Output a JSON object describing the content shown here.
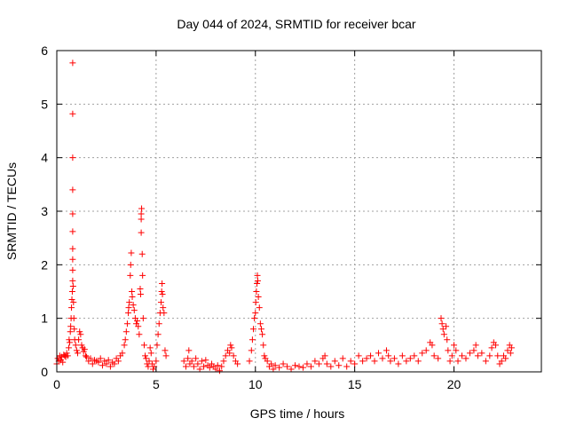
{
  "chart_data": {
    "type": "scatter",
    "title": "Day 044 of 2024, SRMTID for receiver bcar",
    "xlabel": "GPS time / hours",
    "ylabel": "SRMTID / TECUs",
    "xlim": [
      0,
      24.4
    ],
    "ylim": [
      0,
      6
    ],
    "xticks": [
      0,
      5,
      10,
      15,
      20
    ],
    "yticks": [
      0,
      1,
      2,
      3,
      4,
      5,
      6
    ],
    "grid": true,
    "marker": "+",
    "color": "#ff0000",
    "series": [
      {
        "name": "SRMTID",
        "points": [
          [
            0.0,
            0.15
          ],
          [
            0.05,
            0.25
          ],
          [
            0.1,
            0.2
          ],
          [
            0.15,
            0.3
          ],
          [
            0.2,
            0.22
          ],
          [
            0.25,
            0.28
          ],
          [
            0.3,
            0.18
          ],
          [
            0.35,
            0.32
          ],
          [
            0.4,
            0.3
          ],
          [
            0.45,
            0.28
          ],
          [
            0.5,
            0.35
          ],
          [
            0.55,
            0.3
          ],
          [
            0.6,
            0.45
          ],
          [
            0.62,
            0.6
          ],
          [
            0.65,
            0.55
          ],
          [
            0.68,
            0.75
          ],
          [
            0.7,
            0.85
          ],
          [
            0.72,
            1.0
          ],
          [
            0.74,
            1.2
          ],
          [
            0.76,
            1.35
          ],
          [
            0.78,
            1.5
          ],
          [
            0.8,
            1.7
          ],
          [
            0.8,
            1.9
          ],
          [
            0.8,
            2.1
          ],
          [
            0.8,
            2.3
          ],
          [
            0.8,
            2.62
          ],
          [
            0.8,
            2.95
          ],
          [
            0.8,
            3.4
          ],
          [
            0.8,
            4.0
          ],
          [
            0.8,
            4.82
          ],
          [
            0.8,
            5.77
          ],
          [
            0.82,
            1.6
          ],
          [
            0.84,
            1.3
          ],
          [
            0.86,
            1.0
          ],
          [
            0.88,
            0.8
          ],
          [
            0.9,
            0.6
          ],
          [
            0.95,
            0.5
          ],
          [
            1.0,
            0.4
          ],
          [
            1.05,
            0.35
          ],
          [
            1.1,
            0.6
          ],
          [
            1.15,
            0.75
          ],
          [
            1.2,
            0.7
          ],
          [
            1.25,
            0.5
          ],
          [
            1.3,
            0.45
          ],
          [
            1.35,
            0.38
          ],
          [
            1.4,
            0.42
          ],
          [
            1.45,
            0.3
          ],
          [
            1.5,
            0.28
          ],
          [
            1.6,
            0.2
          ],
          [
            1.7,
            0.25
          ],
          [
            1.8,
            0.15
          ],
          [
            1.9,
            0.22
          ],
          [
            2.0,
            0.2
          ],
          [
            2.1,
            0.18
          ],
          [
            2.2,
            0.25
          ],
          [
            2.3,
            0.12
          ],
          [
            2.4,
            0.2
          ],
          [
            2.5,
            0.15
          ],
          [
            2.6,
            0.22
          ],
          [
            2.7,
            0.1
          ],
          [
            2.8,
            0.18
          ],
          [
            2.9,
            0.15
          ],
          [
            3.0,
            0.25
          ],
          [
            3.1,
            0.2
          ],
          [
            3.2,
            0.3
          ],
          [
            3.3,
            0.35
          ],
          [
            3.4,
            0.5
          ],
          [
            3.45,
            0.6
          ],
          [
            3.5,
            0.75
          ],
          [
            3.55,
            0.9
          ],
          [
            3.6,
            1.1
          ],
          [
            3.62,
            1.2
          ],
          [
            3.65,
            1.3
          ],
          [
            3.7,
            1.8
          ],
          [
            3.72,
            2.0
          ],
          [
            3.75,
            2.22
          ],
          [
            3.78,
            1.5
          ],
          [
            3.8,
            1.4
          ],
          [
            3.85,
            1.25
          ],
          [
            3.9,
            1.15
          ],
          [
            3.95,
            1.0
          ],
          [
            4.0,
            0.9
          ],
          [
            4.05,
            0.95
          ],
          [
            4.1,
            0.85
          ],
          [
            4.15,
            0.7
          ],
          [
            4.2,
            1.55
          ],
          [
            4.22,
            1.45
          ],
          [
            4.25,
            2.6
          ],
          [
            4.25,
            2.85
          ],
          [
            4.25,
            2.95
          ],
          [
            4.27,
            3.05
          ],
          [
            4.3,
            2.2
          ],
          [
            4.32,
            1.8
          ],
          [
            4.35,
            1.0
          ],
          [
            4.4,
            0.5
          ],
          [
            4.45,
            0.3
          ],
          [
            4.5,
            0.25
          ],
          [
            4.55,
            0.15
          ],
          [
            4.6,
            0.1
          ],
          [
            4.65,
            0.2
          ],
          [
            4.7,
            0.45
          ],
          [
            4.75,
            0.35
          ],
          [
            4.8,
            0.15
          ],
          [
            4.85,
            0.05
          ],
          [
            4.9,
            0.1
          ],
          [
            5.0,
            0.2
          ],
          [
            5.05,
            0.5
          ],
          [
            5.1,
            0.7
          ],
          [
            5.15,
            0.9
          ],
          [
            5.2,
            1.1
          ],
          [
            5.25,
            1.3
          ],
          [
            5.28,
            1.5
          ],
          [
            5.3,
            1.65
          ],
          [
            5.32,
            1.45
          ],
          [
            5.35,
            1.2
          ],
          [
            5.4,
            1.1
          ],
          [
            5.45,
            0.4
          ],
          [
            5.5,
            0.3
          ],
          [
            6.4,
            0.2
          ],
          [
            6.5,
            0.1
          ],
          [
            6.6,
            0.25
          ],
          [
            6.65,
            0.4
          ],
          [
            6.7,
            0.15
          ],
          [
            6.8,
            0.2
          ],
          [
            6.9,
            0.1
          ],
          [
            7.0,
            0.25
          ],
          [
            7.1,
            0.15
          ],
          [
            7.2,
            0.05
          ],
          [
            7.3,
            0.2
          ],
          [
            7.4,
            0.1
          ],
          [
            7.5,
            0.22
          ],
          [
            7.6,
            0.12
          ],
          [
            7.7,
            0.08
          ],
          [
            7.8,
            0.15
          ],
          [
            7.9,
            0.1
          ],
          [
            8.0,
            0.05
          ],
          [
            8.1,
            0.12
          ],
          [
            8.2,
            0.02
          ],
          [
            8.3,
            0.1
          ],
          [
            8.4,
            0.2
          ],
          [
            8.5,
            0.3
          ],
          [
            8.6,
            0.4
          ],
          [
            8.7,
            0.35
          ],
          [
            8.75,
            0.5
          ],
          [
            8.8,
            0.45
          ],
          [
            8.9,
            0.3
          ],
          [
            9.0,
            0.2
          ],
          [
            9.1,
            0.15
          ],
          [
            9.7,
            0.2
          ],
          [
            9.8,
            0.4
          ],
          [
            9.85,
            0.6
          ],
          [
            9.9,
            0.8
          ],
          [
            9.95,
            1.0
          ],
          [
            10.0,
            1.1
          ],
          [
            10.02,
            1.3
          ],
          [
            10.05,
            1.5
          ],
          [
            10.08,
            1.65
          ],
          [
            10.1,
            1.8
          ],
          [
            10.12,
            1.7
          ],
          [
            10.15,
            1.4
          ],
          [
            10.2,
            1.2
          ],
          [
            10.25,
            0.9
          ],
          [
            10.3,
            0.8
          ],
          [
            10.35,
            0.7
          ],
          [
            10.4,
            0.5
          ],
          [
            10.45,
            0.3
          ],
          [
            10.5,
            0.25
          ],
          [
            10.6,
            0.2
          ],
          [
            10.7,
            0.1
          ],
          [
            10.8,
            0.15
          ],
          [
            10.9,
            0.05
          ],
          [
            11.0,
            0.12
          ],
          [
            11.2,
            0.08
          ],
          [
            11.4,
            0.15
          ],
          [
            11.6,
            0.1
          ],
          [
            11.8,
            0.05
          ],
          [
            12.0,
            0.12
          ],
          [
            12.2,
            0.1
          ],
          [
            12.4,
            0.08
          ],
          [
            12.6,
            0.15
          ],
          [
            12.8,
            0.1
          ],
          [
            13.0,
            0.2
          ],
          [
            13.2,
            0.15
          ],
          [
            13.4,
            0.25
          ],
          [
            13.5,
            0.3
          ],
          [
            13.6,
            0.15
          ],
          [
            13.8,
            0.1
          ],
          [
            14.0,
            0.2
          ],
          [
            14.2,
            0.12
          ],
          [
            14.4,
            0.25
          ],
          [
            14.6,
            0.1
          ],
          [
            14.8,
            0.2
          ],
          [
            15.0,
            0.15
          ],
          [
            15.2,
            0.3
          ],
          [
            15.4,
            0.2
          ],
          [
            15.6,
            0.25
          ],
          [
            15.8,
            0.3
          ],
          [
            16.0,
            0.2
          ],
          [
            16.2,
            0.35
          ],
          [
            16.4,
            0.25
          ],
          [
            16.6,
            0.4
          ],
          [
            16.7,
            0.3
          ],
          [
            16.8,
            0.2
          ],
          [
            17.0,
            0.25
          ],
          [
            17.2,
            0.15
          ],
          [
            17.4,
            0.3
          ],
          [
            17.6,
            0.2
          ],
          [
            17.8,
            0.25
          ],
          [
            18.0,
            0.3
          ],
          [
            18.2,
            0.2
          ],
          [
            18.4,
            0.35
          ],
          [
            18.6,
            0.4
          ],
          [
            18.8,
            0.55
          ],
          [
            18.9,
            0.5
          ],
          [
            19.0,
            0.3
          ],
          [
            19.2,
            0.25
          ],
          [
            19.35,
            1.0
          ],
          [
            19.4,
            0.9
          ],
          [
            19.45,
            0.8
          ],
          [
            19.5,
            0.7
          ],
          [
            19.6,
            0.85
          ],
          [
            19.65,
            0.6
          ],
          [
            19.7,
            0.4
          ],
          [
            19.8,
            0.2
          ],
          [
            19.9,
            0.3
          ],
          [
            20.0,
            0.5
          ],
          [
            20.1,
            0.4
          ],
          [
            20.2,
            0.2
          ],
          [
            20.4,
            0.3
          ],
          [
            20.6,
            0.25
          ],
          [
            20.8,
            0.35
          ],
          [
            21.0,
            0.4
          ],
          [
            21.1,
            0.5
          ],
          [
            21.2,
            0.3
          ],
          [
            21.4,
            0.35
          ],
          [
            21.6,
            0.2
          ],
          [
            21.8,
            0.3
          ],
          [
            21.9,
            0.45
          ],
          [
            22.0,
            0.55
          ],
          [
            22.1,
            0.5
          ],
          [
            22.2,
            0.3
          ],
          [
            22.3,
            0.15
          ],
          [
            22.4,
            0.2
          ],
          [
            22.5,
            0.3
          ],
          [
            22.6,
            0.25
          ],
          [
            22.7,
            0.4
          ],
          [
            22.8,
            0.5
          ],
          [
            22.85,
            0.35
          ],
          [
            22.9,
            0.45
          ]
        ]
      }
    ]
  }
}
